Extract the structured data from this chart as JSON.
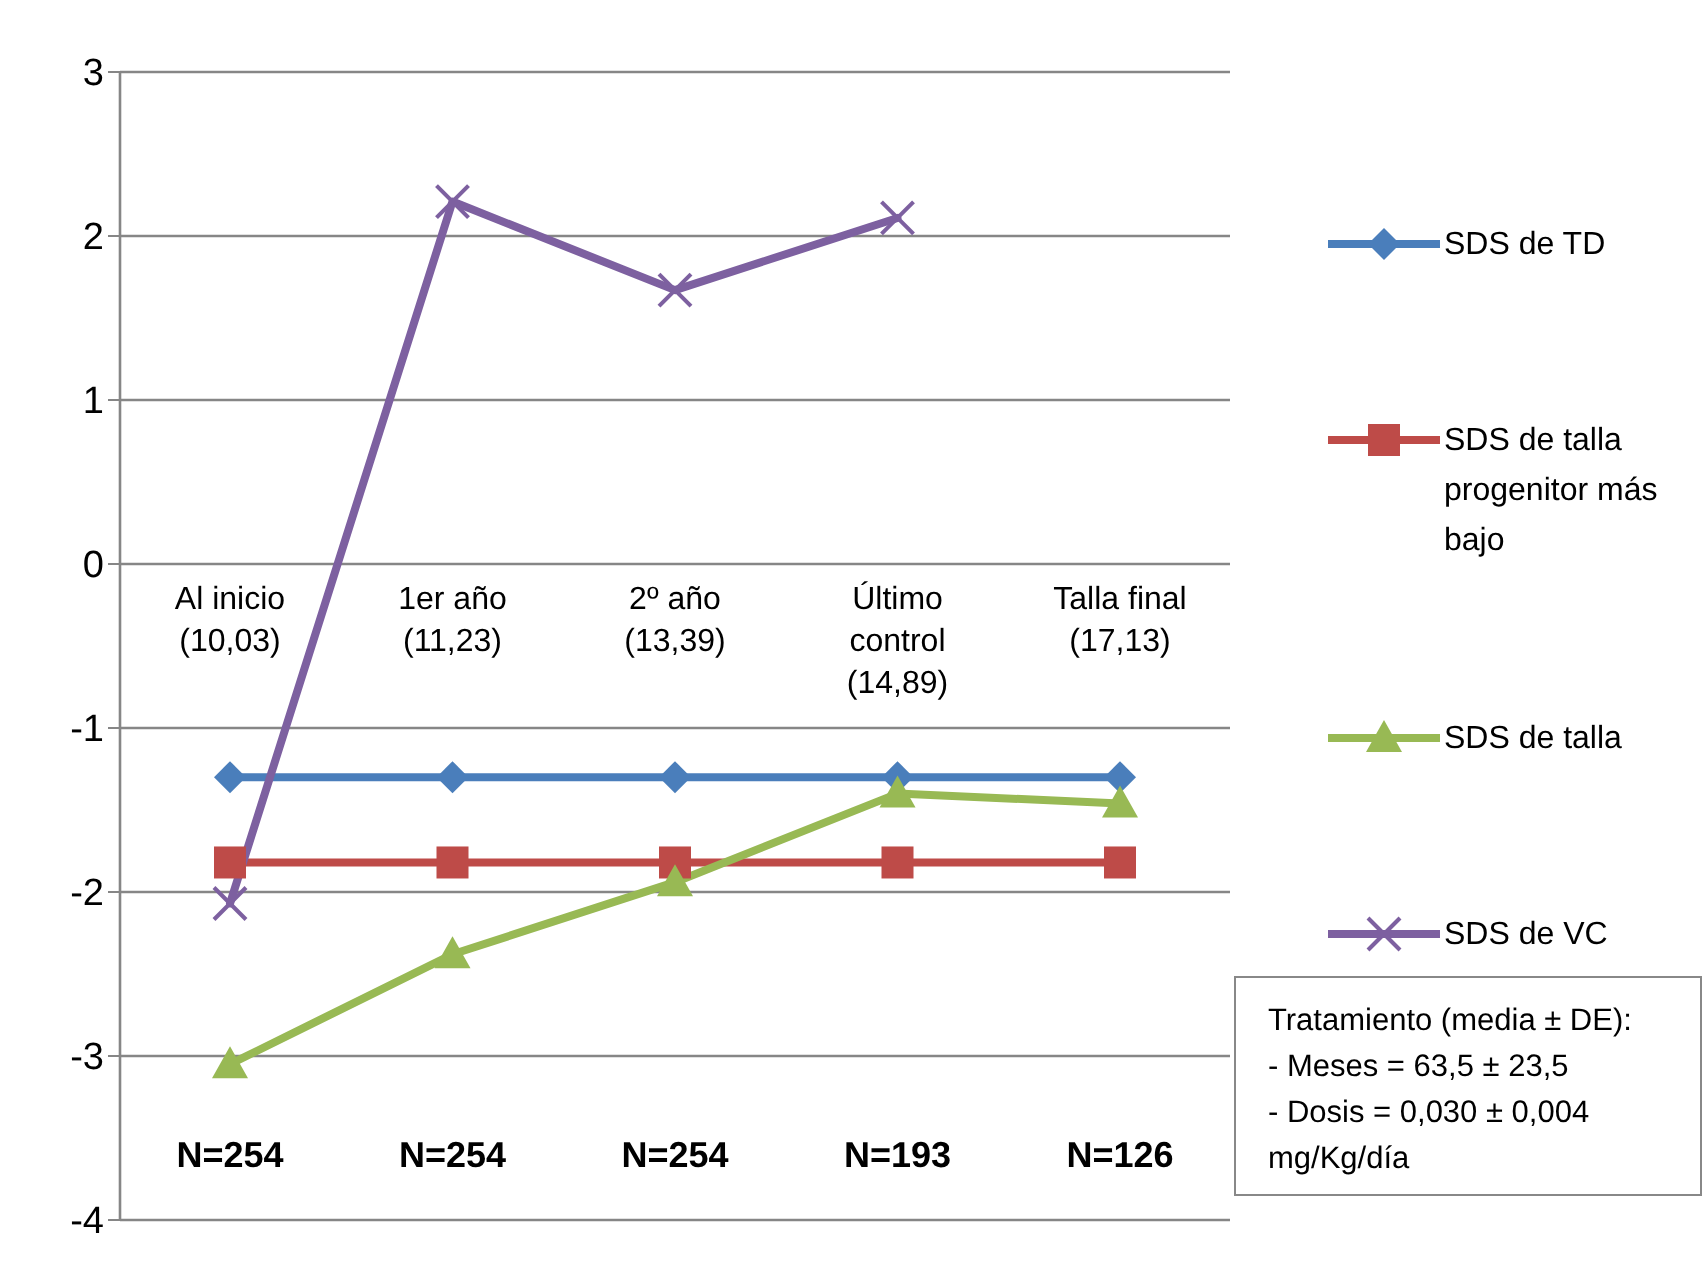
{
  "chart_data": {
    "type": "line",
    "categories": [
      "Al inicio\n(10,03)",
      "1er año\n(11,23)",
      "2º año\n(13,39)",
      "Último\ncontrol\n(14,89)",
      "Talla final\n(17,13)"
    ],
    "series": [
      {
        "name": "SDS de TD",
        "color": "#4a7ebb",
        "marker": "diamond",
        "values": [
          -1.3,
          -1.3,
          -1.3,
          -1.3,
          -1.3
        ]
      },
      {
        "name": "SDS de talla progenitor más bajo",
        "color": "#be4b48",
        "marker": "square",
        "values": [
          -1.82,
          -1.82,
          -1.82,
          -1.82,
          -1.82
        ]
      },
      {
        "name": "SDS de talla",
        "color": "#98b954",
        "marker": "triangle",
        "values": [
          -3.05,
          -2.38,
          -1.94,
          -1.4,
          -1.46
        ]
      },
      {
        "name": "SDS de VC",
        "color": "#7d60a0",
        "marker": "cross",
        "values": [
          -2.07,
          2.21,
          1.67,
          2.11,
          null
        ]
      }
    ],
    "ylim": [
      -4,
      3
    ],
    "yticks": [
      -4,
      -3,
      -2,
      -1,
      0,
      1,
      2,
      3
    ],
    "grid": "y",
    "legend": "right",
    "line_style": "solid",
    "annotations": [
      "N=254",
      "N=254",
      "N=254",
      "N=193",
      "N=126",
      "Tratamiento (media ± DE):\n- Meses = 63,5 ± 23,5\n- Dosis = 0,030 ± 0,004 mg/Kg/día"
    ]
  }
}
